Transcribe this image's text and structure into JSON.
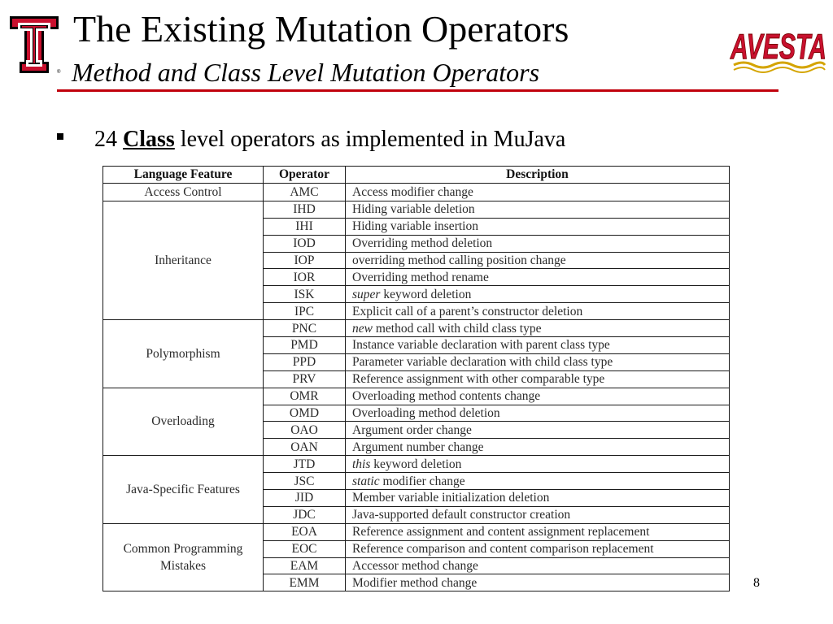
{
  "header": {
    "title": "The Existing Mutation Operators",
    "subtitle": "Method and Class Level Mutation Operators",
    "logo_right_text": "AVESTA"
  },
  "bullet": {
    "number": "24",
    "strong": "Class",
    "rest": "level operators as implemented in MuJava"
  },
  "table": {
    "headers": [
      "Language Feature",
      "Operator",
      "Description"
    ],
    "groups": [
      {
        "feature": "Access Control",
        "rows": [
          {
            "op": "AMC",
            "em": "",
            "text": "Access modifier change"
          }
        ]
      },
      {
        "feature": "Inheritance",
        "rows": [
          {
            "op": "IHD",
            "em": "",
            "text": "Hiding variable deletion"
          },
          {
            "op": "IHI",
            "em": "",
            "text": "Hiding variable insertion"
          },
          {
            "op": "IOD",
            "em": "",
            "text": "Overriding method deletion"
          },
          {
            "op": "IOP",
            "em": "",
            "text": "overriding method calling position change"
          },
          {
            "op": "IOR",
            "em": "",
            "text": "Overriding method rename"
          },
          {
            "op": "ISK",
            "em": "super",
            "text": " keyword deletion"
          },
          {
            "op": "IPC",
            "em": "",
            "text": "Explicit call of a parent’s constructor deletion"
          }
        ]
      },
      {
        "feature": "Polymorphism",
        "rows": [
          {
            "op": "PNC",
            "em": "new",
            "text": " method call with child class type"
          },
          {
            "op": "PMD",
            "em": "",
            "text": "Instance variable declaration with parent class type"
          },
          {
            "op": "PPD",
            "em": "",
            "text": "Parameter variable declaration with child class type"
          },
          {
            "op": "PRV",
            "em": "",
            "text": "Reference assignment with other comparable type"
          }
        ]
      },
      {
        "feature": "Overloading",
        "rows": [
          {
            "op": "OMR",
            "em": "",
            "text": "Overloading method contents change"
          },
          {
            "op": "OMD",
            "em": "",
            "text": "Overloading method deletion"
          },
          {
            "op": "OAO",
            "em": "",
            "text": "Argument order change"
          },
          {
            "op": "OAN",
            "em": "",
            "text": "Argument number change"
          }
        ]
      },
      {
        "feature": "Java-Specific Features",
        "rows": [
          {
            "op": "JTD",
            "em": "this",
            "text": " keyword deletion"
          },
          {
            "op": "JSC",
            "em": "static",
            "text": " modifier change"
          },
          {
            "op": "JID",
            "em": "",
            "text": "Member variable initialization deletion"
          },
          {
            "op": "JDC",
            "em": "",
            "text": "Java-supported default constructor creation"
          }
        ]
      },
      {
        "feature": "Common Programming Mistakes",
        "rows": [
          {
            "op": "EOA",
            "em": "",
            "text": "Reference assignment and content assignment replacement"
          },
          {
            "op": "EOC",
            "em": "",
            "text": "Reference comparison and content comparison replacement"
          },
          {
            "op": "EAM",
            "em": "",
            "text": "Accessor method change"
          },
          {
            "op": "EMM",
            "em": "",
            "text": "Modifier method change"
          }
        ]
      }
    ]
  },
  "page_number": "8",
  "colors": {
    "accent": "#c0000b",
    "logo_red": "#c8102e"
  }
}
